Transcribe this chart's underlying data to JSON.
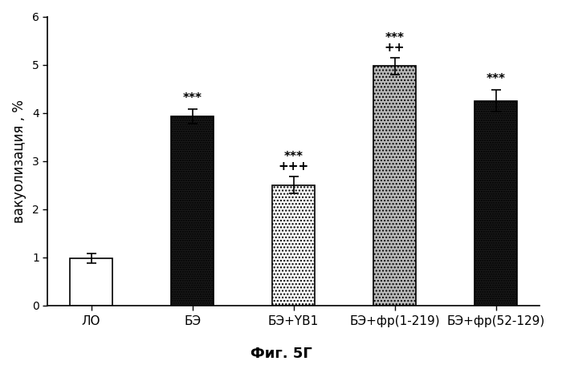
{
  "categories": [
    "ЛО",
    "БЭ",
    "БЭ+YB1",
    "БЭ+фр(1-219)",
    "БЭ+фр(52-129)"
  ],
  "values": [
    0.97,
    3.93,
    2.5,
    4.97,
    4.25
  ],
  "errors": [
    0.1,
    0.15,
    0.18,
    0.18,
    0.22
  ],
  "ylabel": "вакуолизация , %",
  "ylim": [
    0,
    6
  ],
  "yticks": [
    0,
    1,
    2,
    3,
    4,
    5,
    6
  ],
  "title_below": "Фиг. 5Г",
  "figure_width": 7.0,
  "figure_height": 4.55,
  "dpi": 100,
  "bar_width": 0.42,
  "annotation_fontsize": 11,
  "axis_fontsize": 11,
  "ylabel_fontsize": 12,
  "caption_fontsize": 13
}
